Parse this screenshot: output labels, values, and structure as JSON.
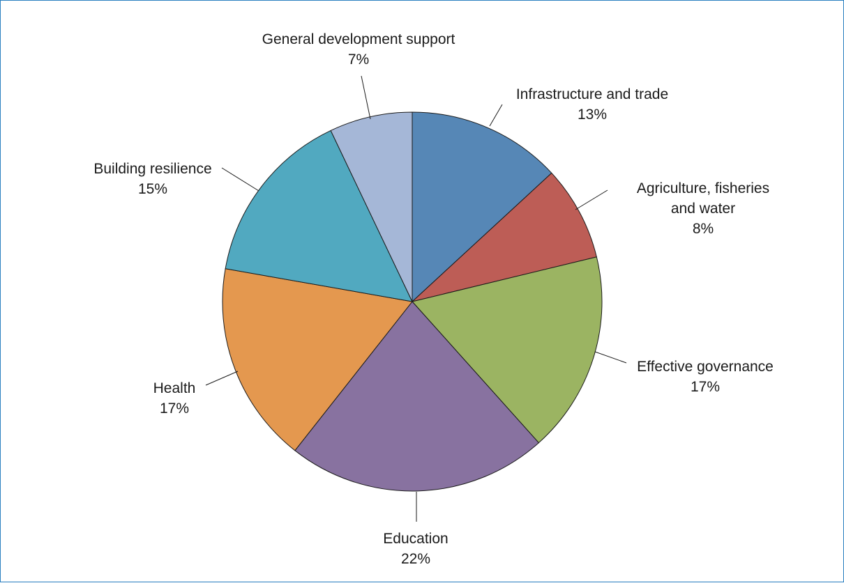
{
  "chart_data": {
    "type": "pie",
    "title": "",
    "slices": [
      {
        "label": [
          "Infrastructure and trade"
        ],
        "value": 13,
        "display": "13%",
        "color": "#5687b6"
      },
      {
        "label": [
          "Agriculture, fisheries",
          "and water"
        ],
        "value": 8,
        "display": "8%",
        "color": "#bd5d56"
      },
      {
        "label": [
          "Effective governance"
        ],
        "value": 17,
        "display": "17%",
        "color": "#9bb462"
      },
      {
        "label": [
          "Education"
        ],
        "value": 22,
        "display": "22%",
        "color": "#8872a0"
      },
      {
        "label": [
          "Health"
        ],
        "value": 17,
        "display": "17%",
        "color": "#e4984f"
      },
      {
        "label": [
          "Building resilience"
        ],
        "value": 15,
        "display": "15%",
        "color": "#51a9c0"
      },
      {
        "label": [
          "General development support"
        ],
        "value": 7,
        "display": "7%",
        "color": "#a5b7d7"
      }
    ]
  }
}
